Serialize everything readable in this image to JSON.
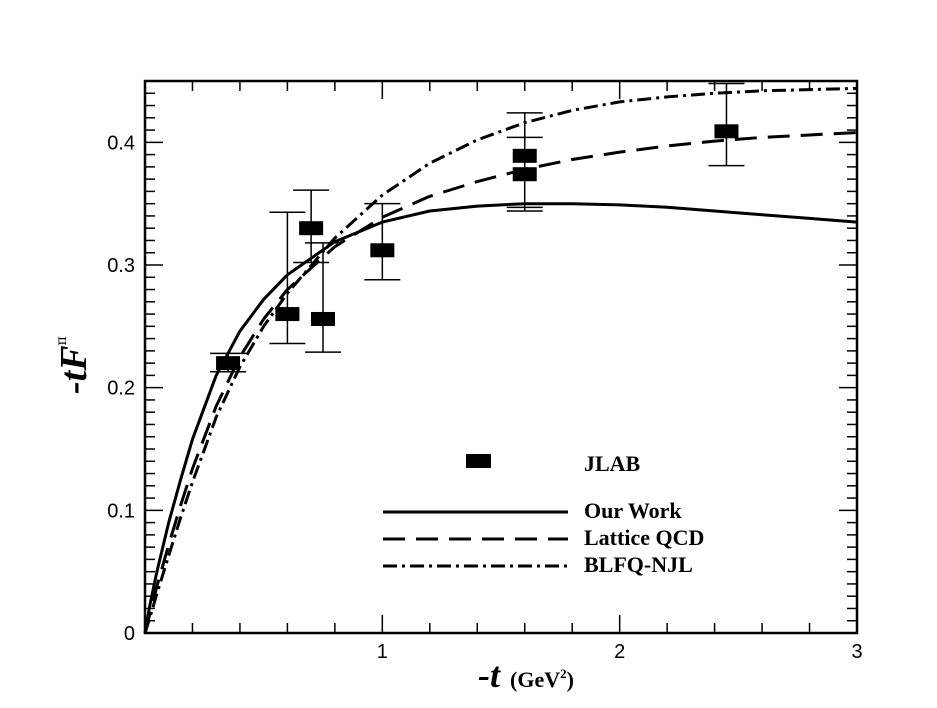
{
  "chart_data": {
    "type": "line",
    "xlabel": {
      "main": "-t",
      "unit": "(GeV",
      "unit_sup": "2",
      "unit_close": ")"
    },
    "ylabel": {
      "main": "-tF",
      "sup": "π"
    },
    "xlim": [
      0,
      3
    ],
    "ylim": [
      0,
      0.45
    ],
    "x_ticks": [
      {
        "value": 1,
        "label": "1"
      },
      {
        "value": 2,
        "label": "2"
      },
      {
        "value": 3,
        "label": "3"
      }
    ],
    "y_ticks": [
      {
        "value": 0,
        "label": "0"
      },
      {
        "value": 0.1,
        "label": "0.1"
      },
      {
        "value": 0.2,
        "label": "0.2"
      },
      {
        "value": 0.3,
        "label": "0.3"
      },
      {
        "value": 0.4,
        "label": "0.4"
      }
    ],
    "legend_position": "bottom-right",
    "series": [
      {
        "name": "JLAB",
        "style": "square-markers",
        "points": [
          {
            "x": 0.35,
            "y": 0.22,
            "ylow": 0.213,
            "yhigh": 0.228
          },
          {
            "x": 0.6,
            "y": 0.26,
            "ylow": 0.236,
            "yhigh": 0.343
          },
          {
            "x": 0.7,
            "y": 0.33,
            "ylow": 0.302,
            "yhigh": 0.361
          },
          {
            "x": 0.75,
            "y": 0.256,
            "ylow": 0.229,
            "yhigh": 0.318
          },
          {
            "x": 1.0,
            "y": 0.312,
            "ylow": 0.288,
            "yhigh": 0.35
          },
          {
            "x": 1.6,
            "y": 0.374,
            "ylow": 0.344,
            "yhigh": 0.404
          },
          {
            "x": 1.6,
            "y": 0.389,
            "ylow": 0.347,
            "yhigh": 0.424
          },
          {
            "x": 2.45,
            "y": 0.409,
            "ylow": 0.381,
            "yhigh": 0.448
          }
        ]
      },
      {
        "name": "Our Work",
        "style": "solid",
        "x": [
          0,
          0.02,
          0.05,
          0.1,
          0.15,
          0.2,
          0.3,
          0.4,
          0.5,
          0.6,
          0.8,
          1.0,
          1.2,
          1.4,
          1.6,
          1.8,
          2.0,
          2.2,
          2.4,
          2.6,
          2.8,
          3.0
        ],
        "y": [
          0,
          0.022,
          0.05,
          0.09,
          0.125,
          0.158,
          0.21,
          0.246,
          0.272,
          0.292,
          0.319,
          0.335,
          0.344,
          0.348,
          0.35,
          0.35,
          0.349,
          0.347,
          0.344,
          0.341,
          0.338,
          0.335
        ]
      },
      {
        "name": "Lattice QCD",
        "style": "dashed",
        "x": [
          0,
          0.02,
          0.05,
          0.1,
          0.15,
          0.2,
          0.3,
          0.4,
          0.5,
          0.6,
          0.8,
          1.0,
          1.2,
          1.4,
          1.6,
          1.8,
          2.0,
          2.2,
          2.4,
          2.6,
          2.8,
          3.0
        ],
        "y": [
          0,
          0.015,
          0.038,
          0.072,
          0.104,
          0.134,
          0.185,
          0.225,
          0.256,
          0.28,
          0.315,
          0.339,
          0.356,
          0.368,
          0.378,
          0.386,
          0.392,
          0.397,
          0.401,
          0.404,
          0.406,
          0.408
        ]
      },
      {
        "name": "BLFQ-NJL",
        "style": "dash-dot",
        "x": [
          0,
          0.02,
          0.05,
          0.1,
          0.15,
          0.2,
          0.3,
          0.4,
          0.5,
          0.6,
          0.8,
          1.0,
          1.2,
          1.4,
          1.6,
          1.8,
          2.0,
          2.2,
          2.4,
          2.6,
          2.8,
          3.0
        ],
        "y": [
          0,
          0.012,
          0.032,
          0.063,
          0.094,
          0.123,
          0.176,
          0.217,
          0.25,
          0.277,
          0.322,
          0.357,
          0.383,
          0.402,
          0.416,
          0.426,
          0.433,
          0.437,
          0.44,
          0.442,
          0.443,
          0.444
        ]
      }
    ]
  }
}
